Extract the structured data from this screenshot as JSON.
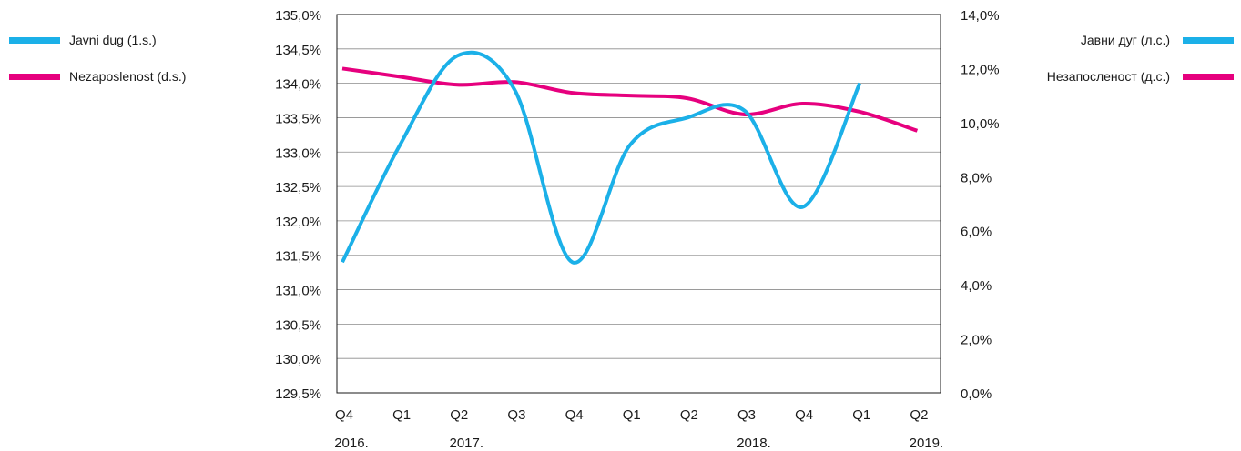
{
  "chart_data": {
    "type": "line",
    "categories": [
      "Q4",
      "Q1",
      "Q2",
      "Q3",
      "Q4",
      "Q1",
      "Q2",
      "Q3",
      "Q4",
      "Q1",
      "Q2"
    ],
    "year_labels": [
      {
        "index": 0,
        "label": "2016."
      },
      {
        "index": 2,
        "label": "2017."
      },
      {
        "index": 7,
        "label": "2018."
      },
      {
        "index": 10,
        "label": "2019."
      }
    ],
    "y_left": {
      "ticks": [
        "135,0%",
        "134,5%",
        "134,0%",
        "133,5%",
        "133,0%",
        "132,5%",
        "132,0%",
        "131,5%",
        "131,0%",
        "130,5%",
        "130,0%",
        "129,5%"
      ],
      "min": 129.5,
      "max": 135.0
    },
    "y_right": {
      "ticks": [
        "14,0%",
        "12,0%",
        "10,0%",
        "8,0%",
        "6,0%",
        "4,0%",
        "2,0%",
        "0,0%"
      ],
      "min": 0,
      "max": 14
    },
    "series": [
      {
        "name": "Javni dug (1.s.)",
        "name_cyrillic": "Јавни дуг (л.с.)",
        "axis": "left",
        "color": "#1BB0E8",
        "values": [
          131.4,
          133.1,
          134.4,
          133.9,
          131.4,
          133.1,
          133.5,
          133.6,
          132.2,
          134.0,
          null
        ]
      },
      {
        "name": "Nezaposlenost (d.s.)",
        "name_cyrillic": "Незапосленост (д.с.)",
        "axis": "right",
        "color": "#E6007E",
        "values": [
          12.0,
          11.7,
          11.4,
          11.5,
          11.1,
          11.0,
          10.9,
          10.3,
          10.7,
          10.4,
          9.7
        ]
      }
    ],
    "grid": true,
    "legend": "top-left and top-right"
  },
  "legend": {
    "left": [
      "Javni dug (1.s.)",
      "Nezaposlenost (d.s.)"
    ],
    "right": [
      "Јавни дуг (л.с.)",
      "Незапосленост (д.с.)"
    ]
  }
}
